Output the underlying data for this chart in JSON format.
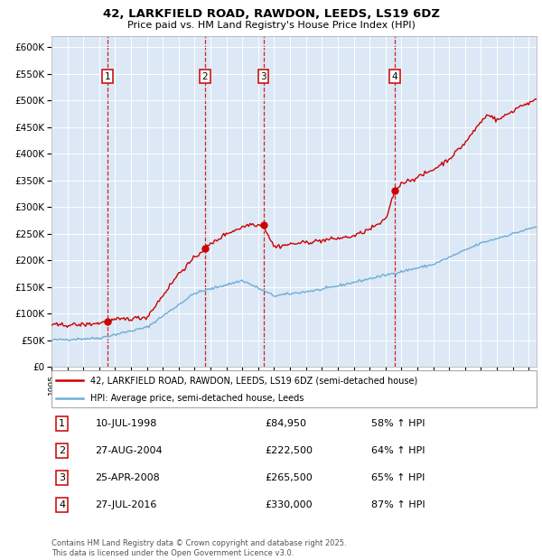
{
  "title": "42, LARKFIELD ROAD, RAWDON, LEEDS, LS19 6DZ",
  "subtitle": "Price paid vs. HM Land Registry's House Price Index (HPI)",
  "legend_line1": "42, LARKFIELD ROAD, RAWDON, LEEDS, LS19 6DZ (semi-detached house)",
  "legend_line2": "HPI: Average price, semi-detached house, Leeds",
  "footer": "Contains HM Land Registry data © Crown copyright and database right 2025.\nThis data is licensed under the Open Government Licence v3.0.",
  "sale_color": "#cc0000",
  "hpi_color": "#6baed6",
  "bg_color": "#dce8f5",
  "sales": [
    {
      "num": 1,
      "date_label": "10-JUL-1998",
      "price": 84950,
      "pct": "58% ↑ HPI",
      "year": 1998.53
    },
    {
      "num": 2,
      "date_label": "27-AUG-2004",
      "price": 222500,
      "pct": "64% ↑ HPI",
      "year": 2004.65
    },
    {
      "num": 3,
      "date_label": "25-APR-2008",
      "price": 265500,
      "pct": "65% ↑ HPI",
      "year": 2008.32
    },
    {
      "num": 4,
      "date_label": "27-JUL-2016",
      "price": 330000,
      "pct": "87% ↑ HPI",
      "year": 2016.57
    }
  ],
  "ylim": [
    0,
    620000
  ],
  "xlim": [
    1995,
    2025.5
  ],
  "yticks": [
    0,
    50000,
    100000,
    150000,
    200000,
    250000,
    300000,
    350000,
    400000,
    450000,
    500000,
    550000,
    600000
  ],
  "ytick_labels": [
    "£0",
    "£50K",
    "£100K",
    "£150K",
    "£200K",
    "£250K",
    "£300K",
    "£350K",
    "£400K",
    "£450K",
    "£500K",
    "£550K",
    "£600K"
  ]
}
